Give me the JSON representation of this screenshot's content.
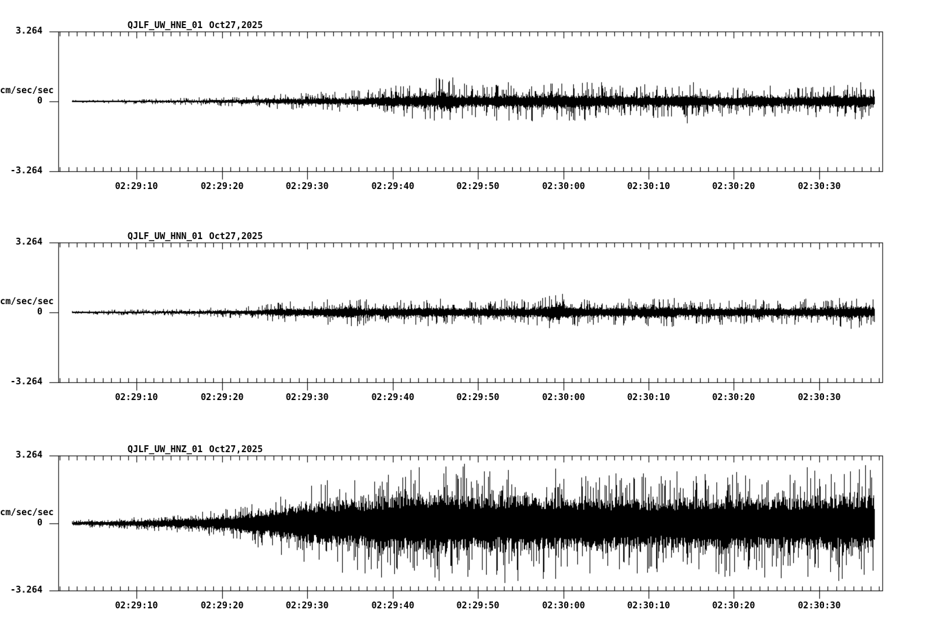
{
  "page": {
    "background_color": "#ffffff",
    "ink_color": "#000000",
    "description_visible": "Three stacked seismogram traces"
  },
  "chart_data": [
    {
      "type": "line",
      "title": "QJLF_UW_HNE_01",
      "date_label": "Oct27,2025",
      "ylabel": "cm/sec/sec",
      "ylim": [
        -3.264,
        3.264
      ],
      "yticks": [
        {
          "value": 3.264,
          "label": "3.264"
        },
        {
          "value": 0,
          "label": "0"
        },
        {
          "value": -3.264,
          "label": "-3.264"
        }
      ],
      "x_tick_labels": [
        "02:29:10",
        "02:29:20",
        "02:29:30",
        "02:29:40",
        "02:29:50",
        "02:30:00",
        "02:30:10",
        "02:30:20",
        "02:30:30"
      ],
      "axis": {
        "span_seconds": 96.6,
        "first_major_offset_sec": 9.2,
        "major_interval_sec": 10,
        "minor_interval_sec": 1,
        "first_minor_offset_sec": 0.2,
        "trace_start_sec": 1.6,
        "trace_end_sec": 95.6,
        "grid": false
      },
      "series_note": "envelope = approx peak amplitude (cm/sec/sec) vs seconds from left axis edge",
      "core_fraction": 0.3,
      "envelope": [
        [
          1.6,
          0.07
        ],
        [
          6,
          0.1
        ],
        [
          12,
          0.14
        ],
        [
          18,
          0.2
        ],
        [
          24,
          0.3
        ],
        [
          27,
          0.42
        ],
        [
          30,
          0.45
        ],
        [
          33,
          0.5
        ],
        [
          36,
          0.6
        ],
        [
          39,
          0.75
        ],
        [
          42,
          0.85
        ],
        [
          44,
          1.0
        ],
        [
          45.5,
          1.25
        ],
        [
          47,
          0.9
        ],
        [
          50,
          0.8
        ],
        [
          53,
          0.95
        ],
        [
          56,
          0.9
        ],
        [
          59,
          1.05
        ],
        [
          62,
          0.95
        ],
        [
          65,
          0.8
        ],
        [
          68,
          0.75
        ],
        [
          71,
          0.85
        ],
        [
          74,
          1.0
        ],
        [
          76,
          0.8
        ],
        [
          79,
          0.65
        ],
        [
          82,
          0.9
        ],
        [
          85,
          0.7
        ],
        [
          88,
          0.75
        ],
        [
          91,
          0.85
        ],
        [
          94,
          0.95
        ],
        [
          95.6,
          0.75
        ]
      ]
    },
    {
      "type": "line",
      "title": "QJLF_UW_HNN_01",
      "date_label": "Oct27,2025",
      "ylabel": "cm/sec/sec",
      "ylim": [
        -3.264,
        3.264
      ],
      "yticks": [
        {
          "value": 3.264,
          "label": "3.264"
        },
        {
          "value": 0,
          "label": "0"
        },
        {
          "value": -3.264,
          "label": "-3.264"
        }
      ],
      "x_tick_labels": [
        "02:29:10",
        "02:29:20",
        "02:29:30",
        "02:29:40",
        "02:29:50",
        "02:30:00",
        "02:30:10",
        "02:30:20",
        "02:30:30"
      ],
      "axis": {
        "span_seconds": 96.6,
        "first_major_offset_sec": 9.2,
        "major_interval_sec": 10,
        "minor_interval_sec": 1,
        "first_minor_offset_sec": 0.2,
        "trace_start_sec": 1.6,
        "trace_end_sec": 95.6,
        "grid": false
      },
      "series_note": "envelope = approx peak amplitude (cm/sec/sec) vs seconds from left axis edge",
      "core_fraction": 0.33,
      "envelope": [
        [
          1.6,
          0.07
        ],
        [
          6,
          0.12
        ],
        [
          12,
          0.16
        ],
        [
          18,
          0.22
        ],
        [
          23,
          0.3
        ],
        [
          26,
          0.55
        ],
        [
          29,
          0.5
        ],
        [
          32,
          0.65
        ],
        [
          34,
          0.8
        ],
        [
          36,
          0.6
        ],
        [
          40,
          0.65
        ],
        [
          44,
          0.62
        ],
        [
          48,
          0.58
        ],
        [
          52,
          0.6
        ],
        [
          56,
          0.65
        ],
        [
          59,
          1.05
        ],
        [
          60,
          0.7
        ],
        [
          64,
          0.6
        ],
        [
          67,
          0.72
        ],
        [
          70,
          0.75
        ],
        [
          74,
          0.62
        ],
        [
          78,
          0.6
        ],
        [
          82,
          0.62
        ],
        [
          86,
          0.58
        ],
        [
          90,
          0.62
        ],
        [
          93,
          0.8
        ],
        [
          95.6,
          0.72
        ]
      ]
    },
    {
      "type": "line",
      "title": "QJLF_UW_HNZ_01",
      "date_label": "Oct27,2025",
      "ylabel": "cm/sec/sec",
      "ylim": [
        -3.264,
        3.264
      ],
      "yticks": [
        {
          "value": 3.264,
          "label": "3.264"
        },
        {
          "value": 0,
          "label": "0"
        },
        {
          "value": -3.264,
          "label": "-3.264"
        }
      ],
      "x_tick_labels": [
        "02:29:10",
        "02:29:20",
        "02:29:30",
        "02:29:40",
        "02:29:50",
        "02:30:00",
        "02:30:10",
        "02:30:20",
        "02:30:30"
      ],
      "axis": {
        "span_seconds": 96.6,
        "first_major_offset_sec": 9.2,
        "major_interval_sec": 10,
        "minor_interval_sec": 1,
        "first_minor_offset_sec": 0.2,
        "trace_start_sec": 1.6,
        "trace_end_sec": 95.6,
        "grid": false
      },
      "series_note": "envelope = approx peak amplitude (cm/sec/sec) vs seconds from left axis edge",
      "core_fraction": 0.45,
      "envelope": [
        [
          1.6,
          0.15
        ],
        [
          5,
          0.22
        ],
        [
          10,
          0.32
        ],
        [
          14,
          0.45
        ],
        [
          18,
          0.62
        ],
        [
          22,
          0.95
        ],
        [
          25,
          1.4
        ],
        [
          28,
          1.8
        ],
        [
          31,
          2.1
        ],
        [
          34,
          2.35
        ],
        [
          37,
          2.55
        ],
        [
          40,
          2.8
        ],
        [
          43,
          2.95
        ],
        [
          46,
          2.9
        ],
        [
          49,
          2.7
        ],
        [
          52,
          2.75
        ],
        [
          55,
          2.85
        ],
        [
          58,
          2.6
        ],
        [
          61,
          2.5
        ],
        [
          64,
          2.55
        ],
        [
          67,
          2.6
        ],
        [
          70,
          2.4
        ],
        [
          73,
          2.5
        ],
        [
          76,
          2.65
        ],
        [
          79,
          2.7
        ],
        [
          82,
          2.6
        ],
        [
          85,
          2.55
        ],
        [
          88,
          2.65
        ],
        [
          91,
          2.75
        ],
        [
          94,
          2.8
        ],
        [
          95.6,
          2.7
        ]
      ]
    }
  ]
}
